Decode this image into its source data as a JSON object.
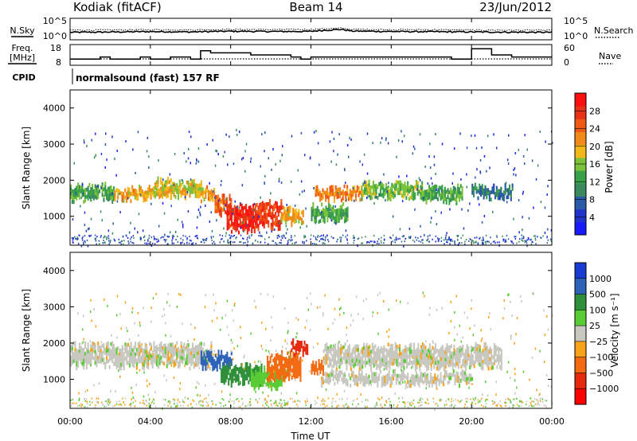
{
  "header": {
    "radar": "Kodiak (fitACF)",
    "beam": "Beam 14",
    "date": "23/Jun/2012"
  },
  "summary": {
    "nsky_label": "N.Sky",
    "nsearch_label": "N.Search",
    "noise_ticks": [
      "10^5",
      "10^0"
    ],
    "freq_label_1": "Freq.",
    "freq_label_2": "[MHz]",
    "freq_ticks": [
      "18",
      "8"
    ],
    "nave_label": "Nave",
    "nave_ticks": [
      "60",
      "0"
    ],
    "cpid_label": "CPID",
    "cpid_text": "normalsound (fast) 157 RF"
  },
  "chart_data": [
    {
      "type": "line",
      "title": "Kodiak (fitACF)  Beam 14  23/Jun/2012",
      "panel": "noise",
      "xlabel": "",
      "ylabel": "",
      "xlim": [
        0,
        24
      ],
      "series": [
        {
          "name": "N.Sky",
          "x": [
            0,
            2,
            4,
            6,
            8,
            10,
            12,
            13.5,
            14,
            16,
            18,
            20,
            22,
            24
          ],
          "values": [
            60,
            70,
            90,
            75,
            110,
            95,
            100,
            300,
            120,
            95,
            85,
            75,
            65,
            60
          ]
        },
        {
          "name": "N.Search",
          "x": [
            0,
            2,
            4,
            6,
            8,
            10,
            12,
            13.5,
            14,
            16,
            18,
            20,
            22,
            24
          ],
          "values": [
            200,
            220,
            260,
            240,
            300,
            280,
            300,
            600,
            320,
            280,
            250,
            220,
            200,
            190
          ]
        }
      ]
    },
    {
      "type": "line",
      "panel": "frequency",
      "xlim": [
        0,
        24
      ],
      "ylim": [
        8,
        18
      ],
      "series": [
        {
          "name": "Freq.",
          "step": true,
          "x": [
            0,
            1.5,
            2,
            3.5,
            4,
            5,
            6,
            6.5,
            7,
            8,
            9,
            10,
            11,
            11.5,
            12,
            13,
            14,
            15,
            16,
            17,
            18,
            19,
            20,
            21,
            22,
            24
          ],
          "values": [
            11,
            12,
            11,
            12,
            11,
            12,
            11,
            15,
            14,
            14,
            13,
            13,
            12,
            11,
            12,
            12,
            12,
            12,
            12,
            12,
            12,
            11,
            16,
            13,
            12,
            12
          ]
        },
        {
          "name": "Nave",
          "step": true,
          "x": [
            0,
            24
          ],
          "values": [
            10,
            10
          ]
        }
      ]
    },
    {
      "type": "heatmap",
      "panel": "power",
      "xlabel": "",
      "ylabel": "Slant Range [km]",
      "colorbar_label": "Power [dB]",
      "colorbar_ticks": [
        "4",
        "8",
        "12",
        "16",
        "20",
        "24",
        "28"
      ],
      "colorbar_colors": [
        "#1a1aff",
        "#2233cc",
        "#2a5aa8",
        "#3a8a5e",
        "#39a24a",
        "#7cc23a",
        "#f2b81a",
        "#f08a1a",
        "#f05a14",
        "#e83218",
        "#ff1010"
      ],
      "xlim": [
        0,
        24
      ],
      "ylim": [
        200,
        4500
      ],
      "yticks": [
        1000,
        2000,
        3000,
        4000
      ],
      "xticks": [
        "00:00",
        "04:00",
        "08:00",
        "12:00",
        "16:00",
        "20:00",
        "00:00"
      ],
      "bands": [
        {
          "t0": 0.0,
          "t1": 2.2,
          "r_center": 1700,
          "r_width": 300,
          "value": 14
        },
        {
          "t0": 2.2,
          "t1": 5.0,
          "r_center": 1650,
          "r_width": 250,
          "value": 20
        },
        {
          "t0": 4.2,
          "t1": 5.2,
          "r_center": 1900,
          "r_width": 200,
          "value": 18
        },
        {
          "t0": 5.0,
          "t1": 6.5,
          "r_center": 1800,
          "r_width": 300,
          "value": 18
        },
        {
          "t0": 6.5,
          "t1": 7.2,
          "r_center": 1650,
          "r_width": 250,
          "value": 20
        },
        {
          "t0": 7.2,
          "t1": 8.0,
          "r_center": 1350,
          "r_width": 400,
          "value": 24
        },
        {
          "t0": 7.8,
          "t1": 9.2,
          "r_center": 1000,
          "r_width": 600,
          "value": 28
        },
        {
          "t0": 9.2,
          "t1": 10.5,
          "r_center": 1100,
          "r_width": 600,
          "value": 26
        },
        {
          "t0": 10.5,
          "t1": 11.6,
          "r_center": 1050,
          "r_width": 300,
          "value": 20
        },
        {
          "t0": 12.0,
          "t1": 13.8,
          "r_center": 1150,
          "r_width": 300,
          "value": 14
        },
        {
          "t0": 12.2,
          "t1": 14.5,
          "r_center": 1650,
          "r_width": 250,
          "value": 22
        },
        {
          "t0": 14.5,
          "t1": 17.5,
          "r_center": 1750,
          "r_width": 350,
          "value": 16
        },
        {
          "t0": 17.5,
          "t1": 19.5,
          "r_center": 1650,
          "r_width": 300,
          "value": 14
        },
        {
          "t0": 20.0,
          "t1": 22.0,
          "r_center": 1700,
          "r_width": 250,
          "value": 10
        }
      ]
    },
    {
      "type": "heatmap",
      "panel": "velocity",
      "xlabel": "Time UT",
      "ylabel": "Slant Range [km]",
      "colorbar_label": "Velocity [m s⁻¹]",
      "colorbar_ticks": [
        "1000",
        "500",
        "100",
        "25",
        "−25",
        "−100",
        "−500",
        "−1000"
      ],
      "colorbar_colors": [
        "#1a3bd1",
        "#2e63b8",
        "#2f8f3a",
        "#59cc35",
        "#c8c8c0",
        "#f6a31a",
        "#f46a10",
        "#e62a10",
        "#ff0000"
      ],
      "xlim": [
        0,
        24
      ],
      "ylim": [
        200,
        4500
      ],
      "yticks": [
        1000,
        2000,
        3000,
        4000
      ],
      "xticks": [
        "00:00",
        "04:00",
        "08:00",
        "12:00",
        "16:00",
        "20:00",
        "00:00"
      ],
      "bands": [
        {
          "t0": 0.0,
          "t1": 7.0,
          "r_center": 1700,
          "r_width": 500,
          "value": 0
        },
        {
          "t0": 6.5,
          "t1": 8.0,
          "r_center": 1550,
          "r_width": 350,
          "value": 600
        },
        {
          "t0": 7.5,
          "t1": 9.5,
          "r_center": 1150,
          "r_width": 450,
          "value": 200
        },
        {
          "t0": 9.0,
          "t1": 10.5,
          "r_center": 1050,
          "r_width": 450,
          "value": 60
        },
        {
          "t0": 9.8,
          "t1": 11.5,
          "r_center": 1400,
          "r_width": 600,
          "value": -200
        },
        {
          "t0": 11.0,
          "t1": 11.8,
          "r_center": 1900,
          "r_width": 250,
          "value": -700
        },
        {
          "t0": 12.0,
          "t1": 12.6,
          "r_center": 1350,
          "r_width": 200,
          "value": -200
        },
        {
          "t0": 12.6,
          "t1": 21.5,
          "r_center": 1650,
          "r_width": 550,
          "value": 0
        },
        {
          "t0": 12.5,
          "t1": 20.0,
          "r_center": 1050,
          "r_width": 250,
          "value": 0
        }
      ]
    }
  ]
}
